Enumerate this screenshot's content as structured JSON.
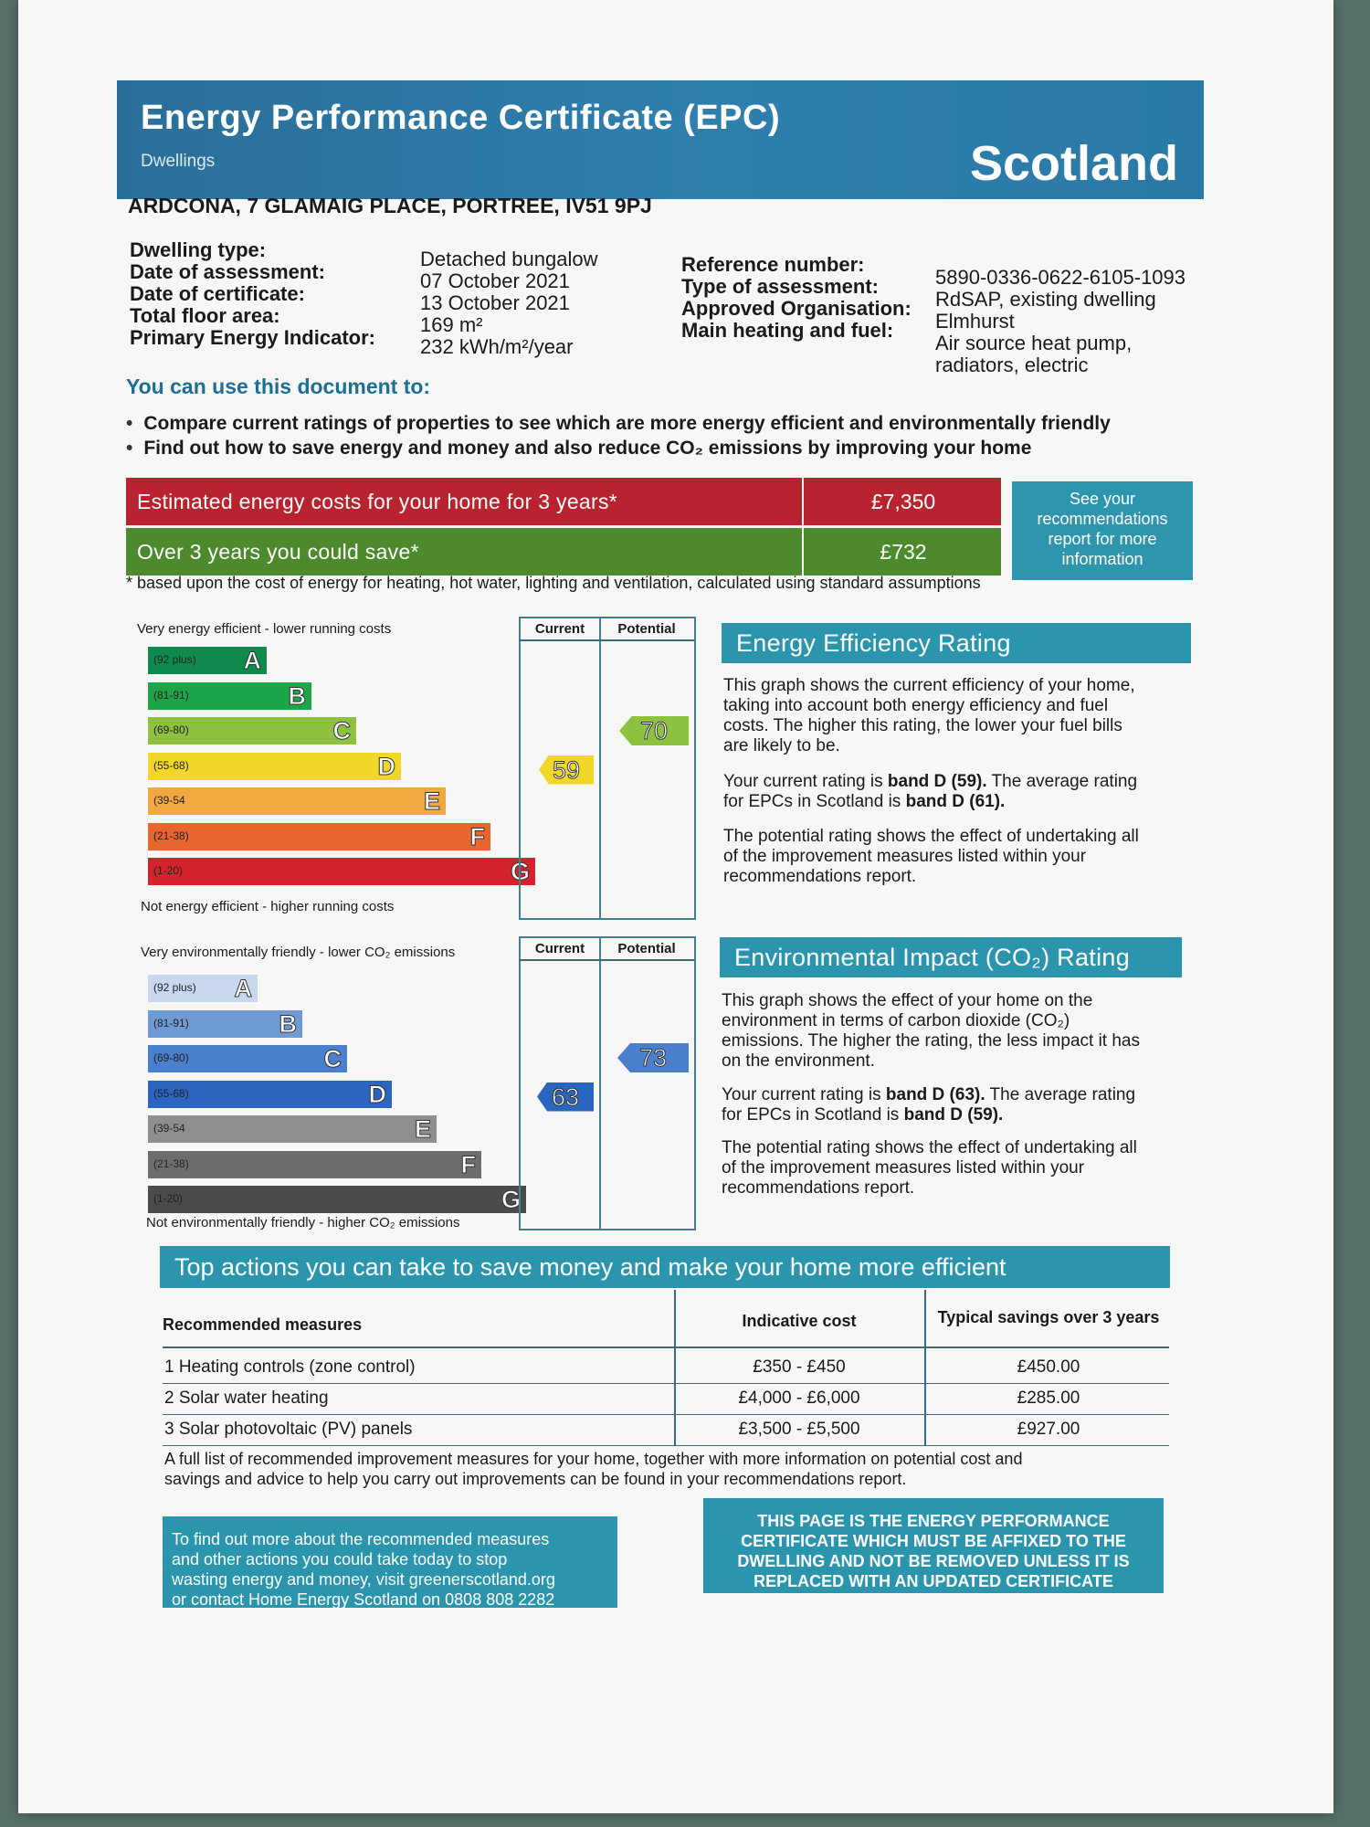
{
  "header": {
    "title": "Energy Performance Certificate (EPC)",
    "subtitle": "Dwellings",
    "region": "Scotland"
  },
  "address": "ARDCONA, 7 GLAMAIG PLACE, PORTREE, IV51 9PJ",
  "details_left": [
    {
      "label": "Dwelling type:",
      "value": "Detached bungalow"
    },
    {
      "label": "Date of assessment:",
      "value": "07 October 2021"
    },
    {
      "label": "Date of certificate:",
      "value": "13 October 2021"
    },
    {
      "label": "Total floor area:",
      "value": "169 m²"
    },
    {
      "label": "Primary Energy Indicator:",
      "value": "232 kWh/m²/year"
    }
  ],
  "details_right": [
    {
      "label": "Reference number:",
      "value": "5890-0336-0622-6105-1093"
    },
    {
      "label": "Type of assessment:",
      "value": "RdSAP, existing dwelling"
    },
    {
      "label": "Approved Organisation:",
      "value": "Elmhurst"
    },
    {
      "label": "Main heating and fuel:",
      "value": "Air source heat pump,",
      "value2": "radiators, electric"
    }
  ],
  "use_heading": "You can use this document to:",
  "use_bullets": [
    "Compare current ratings of properties to see which are more energy efficient and environmentally friendly",
    "Find out how to save energy and money and also reduce CO₂ emissions by improving your home"
  ],
  "costs": {
    "estimated_label": "Estimated energy costs for your home for 3 years*",
    "estimated_value": "£7,350",
    "save_label": "Over 3 years you could save*",
    "save_value": "£732",
    "see_box": [
      "See your",
      "recommendations",
      "report for more",
      "information"
    ],
    "footnote": "* based upon the cost of energy for heating, hot water, lighting and ventilation, calculated using standard assumptions"
  },
  "energy_rating": {
    "top_caption": "Very energy efficient - lower running costs",
    "bottom_caption": "Not energy efficient - higher running costs",
    "col_current": "Current",
    "col_potential": "Potential",
    "bands": [
      {
        "range": "(92 plus)",
        "letter": "A",
        "color": "#0e8a4e"
      },
      {
        "range": "(81-91)",
        "letter": "B",
        "color": "#1ea54a"
      },
      {
        "range": "(69-80)",
        "letter": "C",
        "color": "#8dc13f"
      },
      {
        "range": "(55-68)",
        "letter": "D",
        "color": "#f1d728"
      },
      {
        "range": "(39-54",
        "letter": "E",
        "color": "#f2a841"
      },
      {
        "range": "(21-38)",
        "letter": "F",
        "color": "#e8652d"
      },
      {
        "range": "(1-20)",
        "letter": "G",
        "color": "#d3222b"
      }
    ],
    "current": 59,
    "potential": 70,
    "current_color": "#f1d728",
    "potential_color": "#8dc13f",
    "heading": "Energy Efficiency Rating",
    "para1": [
      "This graph shows the current efficiency of your home,",
      "taking into account both energy efficiency and fuel",
      "costs. The higher this rating, the lower your fuel bills",
      "are likely to be."
    ],
    "para2_a": "Your current rating is ",
    "para2_b": "band D (59).",
    "para2_c": " The average rating",
    "para2_d": "for EPCs in Scotland is ",
    "para2_e": "band D (61).",
    "para3": [
      "The potential rating shows the effect of undertaking all",
      "of the improvement measures listed within your",
      "recommendations report."
    ]
  },
  "environment_rating": {
    "top_caption": "Very environmentally friendly - lower CO₂ emissions",
    "bottom_caption": "Not environmentally friendly - higher CO₂ emissions",
    "col_current": "Current",
    "col_potential": "Potential",
    "bands": [
      {
        "range": "(92 plus)",
        "letter": "A",
        "color": "#c9d8ee"
      },
      {
        "range": "(81-91)",
        "letter": "B",
        "color": "#6f9ad6"
      },
      {
        "range": "(69-80)",
        "letter": "C",
        "color": "#4a7fce"
      },
      {
        "range": "(55-68)",
        "letter": "D",
        "color": "#2a66c0"
      },
      {
        "range": "(39-54",
        "letter": "E",
        "color": "#8f8f8f"
      },
      {
        "range": "(21-38)",
        "letter": "F",
        "color": "#6d6d6d"
      },
      {
        "range": "(1-20)",
        "letter": "G",
        "color": "#4b4b4b"
      }
    ],
    "current": 63,
    "potential": 73,
    "current_color": "#2a66c0",
    "potential_color": "#4a7fce",
    "heading": "Environmental Impact (CO₂) Rating",
    "para1": [
      "This graph shows the effect of your home on the",
      "environment in terms of carbon dioxide (CO₂)",
      "emissions. The higher the rating, the less impact it has",
      "on the environment."
    ],
    "para2_a": "Your current rating is ",
    "para2_b": "band D (63).",
    "para2_c": " The average rating",
    "para2_d": "for EPCs in Scotland is ",
    "para2_e": "band D (59).",
    "para3": [
      "The potential rating shows the effect of undertaking all",
      "of the improvement measures listed within your",
      "recommendations report."
    ]
  },
  "actions": {
    "heading": "Top actions you can take to save money and make your home more efficient",
    "col_measures": "Recommended measures",
    "col_cost": "Indicative cost",
    "col_savings": "Typical savings over 3 years",
    "rows": [
      {
        "measure": "1 Heating controls (zone control)",
        "cost": "£350 - £450",
        "savings": "£450.00"
      },
      {
        "measure": "2 Solar water heating",
        "cost": "£4,000 - £6,000",
        "savings": "£285.00"
      },
      {
        "measure": "3 Solar photovoltaic (PV) panels",
        "cost": "£3,500 - £5,500",
        "savings": "£927.00"
      }
    ],
    "note": [
      "A full list of recommended improvement measures for your home, together with more information on potential cost and",
      "savings and advice to help you carry out improvements can be found in your recommendations report."
    ]
  },
  "footer": {
    "left": [
      "To find out more about the recommended measures",
      "and other actions you could take today to stop",
      "wasting energy and money, visit greenerscotland.org",
      "or contact Home Energy Scotland on 0808 808 2282"
    ],
    "right": [
      "THIS PAGE IS THE ENERGY PERFORMANCE",
      "CERTIFICATE WHICH MUST BE AFFIXED TO THE",
      "DWELLING AND NOT BE REMOVED UNLESS IT IS",
      "REPLACED WITH AN UPDATED CERTIFICATE"
    ]
  }
}
